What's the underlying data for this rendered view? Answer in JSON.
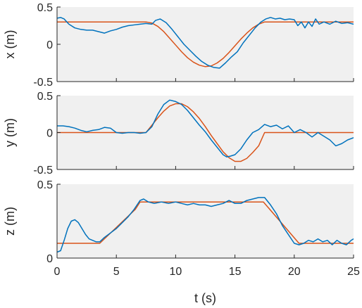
{
  "chart_data": [
    {
      "type": "line",
      "ylabel": "x (m)",
      "xlim": [
        0,
        25
      ],
      "ylim": [
        -0.5,
        0.5
      ],
      "yticks": [
        -0.5,
        0,
        0.5
      ],
      "ytick_labels": [
        "-0.5",
        "0",
        "0.5"
      ],
      "xticks": [
        0,
        5,
        10,
        15,
        20,
        25
      ],
      "show_xtick_labels": false,
      "series": [
        {
          "color": "#D95319",
          "x": [
            0,
            7.5,
            8,
            8.5,
            9,
            9.5,
            10,
            10.5,
            11,
            11.5,
            12,
            12.5,
            13,
            13.5,
            14,
            14.5,
            15,
            15.5,
            16,
            16.5,
            17,
            17.5,
            25
          ],
          "y": [
            0.3,
            0.3,
            0.285,
            0.24,
            0.17,
            0.08,
            -0.01,
            -0.1,
            -0.18,
            -0.24,
            -0.28,
            -0.3,
            -0.29,
            -0.25,
            -0.19,
            -0.11,
            -0.02,
            0.07,
            0.15,
            0.22,
            0.27,
            0.3,
            0.3
          ]
        },
        {
          "color": "#0072BD",
          "x": [
            0,
            0.3,
            0.6,
            1,
            1.5,
            2,
            2.5,
            3,
            3.5,
            4,
            4.5,
            5,
            5.5,
            6,
            6.5,
            7,
            7.5,
            8,
            8.3,
            8.7,
            9.2,
            9.7,
            10.2,
            10.7,
            11.2,
            11.7,
            12.2,
            12.7,
            13.2,
            13.7,
            14.2,
            14.7,
            15.2,
            15.7,
            16.2,
            16.7,
            17.2,
            17.6,
            18.0,
            18.4,
            18.8,
            19.2,
            19.6,
            20,
            20.3,
            20.6,
            20.9,
            21.2,
            21.5,
            21.8,
            22.1,
            22.5,
            23,
            23.5,
            24,
            24.5,
            25
          ],
          "y": [
            0.35,
            0.36,
            0.34,
            0.27,
            0.22,
            0.2,
            0.19,
            0.19,
            0.17,
            0.15,
            0.18,
            0.2,
            0.23,
            0.25,
            0.26,
            0.27,
            0.28,
            0.27,
            0.32,
            0.34,
            0.29,
            0.2,
            0.1,
            0.0,
            -0.08,
            -0.16,
            -0.23,
            -0.28,
            -0.31,
            -0.32,
            -0.25,
            -0.17,
            -0.1,
            0.02,
            0.12,
            0.22,
            0.3,
            0.34,
            0.36,
            0.34,
            0.35,
            0.33,
            0.34,
            0.33,
            0.25,
            0.3,
            0.22,
            0.3,
            0.24,
            0.34,
            0.27,
            0.3,
            0.27,
            0.31,
            0.28,
            0.29,
            0.27
          ]
        }
      ]
    },
    {
      "type": "line",
      "ylabel": "y (m)",
      "xlim": [
        0,
        25
      ],
      "ylim": [
        -0.5,
        0.5
      ],
      "yticks": [
        -0.5,
        0,
        0.5
      ],
      "ytick_labels": [
        "-0.5",
        "0",
        "0.5"
      ],
      "xticks": [
        0,
        5,
        10,
        15,
        20,
        25
      ],
      "show_xtick_labels": false,
      "series": [
        {
          "color": "#D95319",
          "x": [
            0,
            7.5,
            8,
            8.5,
            9,
            9.5,
            10,
            10.5,
            11,
            11.5,
            12,
            12.5,
            13,
            13.5,
            14,
            14.5,
            15,
            15.5,
            16,
            16.5,
            17,
            17.5,
            25
          ],
          "y": [
            0,
            0,
            0.1,
            0.2,
            0.29,
            0.36,
            0.39,
            0.39,
            0.35,
            0.28,
            0.19,
            0.08,
            -0.04,
            -0.15,
            -0.26,
            -0.34,
            -0.39,
            -0.39,
            -0.35,
            -0.27,
            -0.18,
            0,
            0
          ]
        },
        {
          "color": "#0072BD",
          "x": [
            0,
            0.5,
            1,
            1.5,
            2,
            2.5,
            3,
            3.5,
            4,
            4.5,
            5,
            5.5,
            6,
            6.5,
            7,
            7.5,
            8,
            8.5,
            9,
            9.5,
            10,
            10.5,
            11,
            11.5,
            12,
            12.5,
            13,
            13.5,
            14,
            14.3,
            14.6,
            15,
            15.5,
            16,
            16.5,
            17,
            17.5,
            18,
            18.5,
            19,
            19.5,
            20,
            20.5,
            21,
            21.5,
            22,
            22.5,
            23,
            23.5,
            24,
            24.5,
            25
          ],
          "y": [
            0.09,
            0.09,
            0.08,
            0.06,
            0.03,
            0.01,
            0.03,
            0.04,
            0.07,
            0.06,
            0.0,
            -0.01,
            0.0,
            0.0,
            -0.01,
            0.0,
            0.08,
            0.25,
            0.38,
            0.44,
            0.42,
            0.38,
            0.3,
            0.2,
            0.1,
            0.01,
            -0.1,
            -0.2,
            -0.3,
            -0.33,
            -0.32,
            -0.3,
            -0.22,
            -0.1,
            0.0,
            0.04,
            0.11,
            0.08,
            0.1,
            0.05,
            0.09,
            0.0,
            0.04,
            0.0,
            -0.06,
            0.0,
            -0.05,
            -0.1,
            -0.18,
            -0.15,
            -0.1,
            -0.07
          ]
        }
      ]
    },
    {
      "type": "line",
      "ylabel": "z (m)",
      "xlabel": "t (s)",
      "xlim": [
        0,
        25
      ],
      "ylim": [
        0,
        0.5
      ],
      "yticks": [
        0,
        0.5
      ],
      "ytick_labels": [
        "0",
        "0.5"
      ],
      "xticks": [
        0,
        5,
        10,
        15,
        20,
        25
      ],
      "xtick_labels": [
        "0",
        "5",
        "10",
        "15",
        "20",
        "25"
      ],
      "show_xtick_labels": true,
      "series": [
        {
          "color": "#D95319",
          "x": [
            0,
            3.6,
            6.6,
            7,
            17.4,
            20.4,
            25
          ],
          "y": [
            0.1,
            0.1,
            0.33,
            0.38,
            0.38,
            0.1,
            0.1
          ]
        },
        {
          "color": "#0072BD",
          "x": [
            0,
            0.3,
            0.6,
            0.9,
            1.2,
            1.5,
            1.8,
            2.1,
            2.4,
            2.7,
            3.0,
            3.3,
            3.6,
            4.0,
            4.5,
            5.0,
            5.5,
            6.0,
            6.5,
            7.0,
            7.3,
            7.7,
            8.2,
            8.8,
            9.4,
            10,
            10.5,
            11,
            11.5,
            12,
            12.5,
            13,
            13.5,
            14,
            14.5,
            15,
            15.5,
            16,
            16.5,
            17,
            17.5,
            18,
            18.5,
            19,
            19.5,
            20,
            20.4,
            20.8,
            21.2,
            21.6,
            22,
            22.4,
            22.8,
            23.2,
            23.6,
            24,
            24.4,
            24.8,
            25
          ],
          "y": [
            0.04,
            0.05,
            0.12,
            0.2,
            0.25,
            0.26,
            0.24,
            0.2,
            0.16,
            0.13,
            0.12,
            0.11,
            0.11,
            0.14,
            0.17,
            0.2,
            0.24,
            0.28,
            0.33,
            0.39,
            0.4,
            0.38,
            0.37,
            0.38,
            0.37,
            0.38,
            0.37,
            0.36,
            0.37,
            0.36,
            0.36,
            0.35,
            0.36,
            0.37,
            0.39,
            0.37,
            0.37,
            0.39,
            0.4,
            0.41,
            0.41,
            0.36,
            0.3,
            0.22,
            0.16,
            0.1,
            0.09,
            0.1,
            0.12,
            0.11,
            0.13,
            0.11,
            0.12,
            0.09,
            0.12,
            0.1,
            0.09,
            0.12,
            0.13
          ]
        }
      ]
    }
  ]
}
